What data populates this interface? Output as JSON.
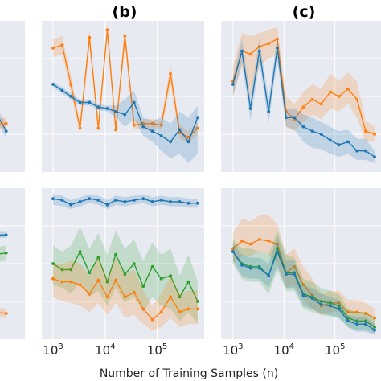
{
  "colors": {
    "blue": "#1f77b4",
    "orange": "#ff7f0e",
    "green": "#2ca02c",
    "panel_bg": "#e8eaf2",
    "grid": "#ffffff"
  },
  "xlabel": "Number of Training Samples (n)",
  "x_ticks": [
    {
      "base": "10",
      "exp": "3"
    },
    {
      "base": "10",
      "exp": "4"
    },
    {
      "base": "10",
      "exp": "5"
    }
  ],
  "chart_data": [
    {
      "type": "line",
      "panel": "(a)-top (partially visible)",
      "title": "",
      "x_scale": "log",
      "xlim": [
        700,
        800000
      ],
      "ylim": [
        0,
        1
      ],
      "series": [
        {
          "color": "blue",
          "x": [
            400000,
            600000
          ],
          "y": [
            0.55,
            0.27
          ],
          "band": [
            [
              0.52,
              0.58
            ],
            [
              0.22,
              0.32
            ]
          ]
        },
        {
          "color": "orange",
          "x": [
            400000,
            600000
          ],
          "y": [
            0.32,
            0.32
          ],
          "band": [
            [
              0.29,
              0.35
            ],
            [
              0.28,
              0.36
            ]
          ]
        }
      ]
    },
    {
      "type": "line",
      "panel": "(b)-top",
      "title": "(b)",
      "x_scale": "log",
      "xlim": [
        700,
        800000
      ],
      "ylim": [
        0,
        1
      ],
      "series": [
        {
          "color": "orange",
          "x": [
            1000,
            1500,
            2200,
            3300,
            5000,
            7400,
            11000,
            16000,
            24000,
            36000,
            54000,
            81000,
            120000,
            180000,
            270000,
            400000,
            600000
          ],
          "y": [
            0.82,
            0.84,
            0.58,
            0.29,
            0.89,
            0.29,
            0.94,
            0.28,
            0.9,
            0.31,
            0.32,
            0.32,
            0.31,
            0.65,
            0.26,
            0.23,
            0.29
          ],
          "band_low": [
            0.76,
            0.78,
            0.52,
            0.25,
            0.83,
            0.26,
            0.88,
            0.25,
            0.83,
            0.28,
            0.29,
            0.29,
            0.28,
            0.58,
            0.22,
            0.19,
            0.25
          ],
          "band_high": [
            0.88,
            0.9,
            0.64,
            0.33,
            0.95,
            0.33,
            0.98,
            0.31,
            0.96,
            0.35,
            0.35,
            0.35,
            0.34,
            0.72,
            0.31,
            0.27,
            0.33
          ]
        },
        {
          "color": "blue",
          "x": [
            1000,
            1500,
            2200,
            3300,
            5000,
            7400,
            11000,
            16000,
            24000,
            36000,
            54000,
            81000,
            120000,
            180000,
            270000,
            400000,
            600000
          ],
          "y": [
            0.58,
            0.54,
            0.5,
            0.46,
            0.46,
            0.43,
            0.42,
            0.4,
            0.38,
            0.46,
            0.3,
            0.27,
            0.24,
            0.2,
            0.28,
            0.2,
            0.36
          ],
          "band_low": [
            0.56,
            0.52,
            0.48,
            0.44,
            0.44,
            0.41,
            0.4,
            0.36,
            0.3,
            0.35,
            0.24,
            0.2,
            0.14,
            0.09,
            0.12,
            0.06,
            0.12
          ],
          "band_high": [
            0.6,
            0.56,
            0.52,
            0.48,
            0.48,
            0.45,
            0.44,
            0.44,
            0.48,
            0.54,
            0.36,
            0.34,
            0.36,
            0.32,
            0.4,
            0.36,
            0.44
          ]
        }
      ]
    },
    {
      "type": "line",
      "panel": "(c)-top",
      "title": "(c)",
      "x_scale": "log",
      "xlim": [
        700,
        800000
      ],
      "ylim": [
        0,
        1
      ],
      "series": [
        {
          "color": "orange",
          "x": [
            1000,
            1500,
            2200,
            3300,
            5000,
            7400,
            11000,
            16000,
            24000,
            36000,
            54000,
            81000,
            120000,
            180000,
            270000,
            400000,
            600000
          ],
          "y": [
            0.6,
            0.8,
            0.78,
            0.83,
            0.85,
            0.88,
            0.4,
            0.35,
            0.43,
            0.48,
            0.45,
            0.53,
            0.5,
            0.55,
            0.48,
            0.27,
            0.25
          ],
          "band_low": [
            0.5,
            0.7,
            0.5,
            0.7,
            0.75,
            0.78,
            0.3,
            0.27,
            0.33,
            0.38,
            0.35,
            0.42,
            0.4,
            0.45,
            0.36,
            0.2,
            0.2
          ],
          "band_high": [
            0.7,
            0.92,
            0.9,
            0.92,
            0.94,
            0.96,
            0.5,
            0.45,
            0.53,
            0.58,
            0.55,
            0.65,
            0.6,
            0.66,
            0.6,
            0.34,
            0.3
          ]
        },
        {
          "color": "blue",
          "x": [
            1000,
            1500,
            2200,
            3300,
            5000,
            7400,
            11000,
            16000,
            24000,
            36000,
            54000,
            81000,
            120000,
            180000,
            270000,
            400000,
            600000
          ],
          "y": [
            0.58,
            0.8,
            0.42,
            0.8,
            0.4,
            0.82,
            0.36,
            0.36,
            0.3,
            0.27,
            0.25,
            0.21,
            0.18,
            0.2,
            0.14,
            0.14,
            0.1
          ],
          "band_low": [
            0.5,
            0.72,
            0.34,
            0.72,
            0.32,
            0.74,
            0.3,
            0.28,
            0.2,
            0.16,
            0.15,
            0.12,
            0.1,
            0.12,
            0.08,
            0.08,
            0.06
          ],
          "band_high": [
            0.64,
            0.88,
            0.5,
            0.88,
            0.48,
            0.9,
            0.42,
            0.42,
            0.38,
            0.36,
            0.33,
            0.3,
            0.27,
            0.28,
            0.22,
            0.22,
            0.14
          ]
        }
      ]
    },
    {
      "type": "line",
      "panel": "(a)-bottom (partially visible)",
      "title": "",
      "x_scale": "log",
      "xlim": [
        700,
        800000
      ],
      "ylim": [
        0,
        1
      ],
      "series": [
        {
          "color": "blue",
          "x": [
            400000,
            600000
          ],
          "y": [
            0.69,
            0.69
          ],
          "band": [
            [
              0.67,
              0.71
            ],
            [
              0.67,
              0.71
            ]
          ]
        },
        {
          "color": "green",
          "x": [
            400000,
            600000
          ],
          "y": [
            0.55,
            0.57
          ],
          "band": [
            [
              0.5,
              0.6
            ],
            [
              0.52,
              0.62
            ]
          ]
        },
        {
          "color": "orange",
          "x": [
            400000,
            600000
          ],
          "y": [
            0.19,
            0.17
          ],
          "band": [
            [
              0.16,
              0.22
            ],
            [
              0.14,
              0.2
            ]
          ]
        }
      ]
    },
    {
      "type": "line",
      "panel": "(b)-bottom",
      "title": "",
      "x_scale": "log",
      "xlim": [
        700,
        800000
      ],
      "ylim": [
        0,
        1
      ],
      "series": [
        {
          "color": "blue",
          "x": [
            1000,
            1500,
            2200,
            3300,
            5000,
            7400,
            11000,
            16000,
            24000,
            36000,
            54000,
            81000,
            120000,
            180000,
            270000,
            400000,
            600000
          ],
          "y": [
            0.93,
            0.92,
            0.89,
            0.91,
            0.93,
            0.92,
            0.89,
            0.92,
            0.91,
            0.92,
            0.93,
            0.91,
            0.92,
            0.91,
            0.91,
            0.9,
            0.9
          ],
          "band_low": [
            0.89,
            0.88,
            0.86,
            0.88,
            0.9,
            0.89,
            0.86,
            0.89,
            0.88,
            0.89,
            0.9,
            0.88,
            0.89,
            0.88,
            0.88,
            0.87,
            0.87
          ],
          "band_high": [
            0.96,
            0.95,
            0.92,
            0.94,
            0.96,
            0.95,
            0.92,
            0.95,
            0.94,
            0.95,
            0.96,
            0.94,
            0.95,
            0.94,
            0.94,
            0.93,
            0.93
          ]
        },
        {
          "color": "green",
          "x": [
            1000,
            1500,
            2200,
            3300,
            5000,
            7400,
            11000,
            16000,
            24000,
            36000,
            54000,
            81000,
            120000,
            180000,
            270000,
            400000,
            600000
          ],
          "y": [
            0.5,
            0.46,
            0.46,
            0.58,
            0.44,
            0.54,
            0.38,
            0.56,
            0.43,
            0.5,
            0.35,
            0.48,
            0.4,
            0.42,
            0.28,
            0.38,
            0.25
          ],
          "band_low": [
            0.36,
            0.34,
            0.3,
            0.38,
            0.28,
            0.32,
            0.22,
            0.34,
            0.24,
            0.28,
            0.18,
            0.28,
            0.22,
            0.2,
            0.12,
            0.18,
            0.1
          ],
          "band_high": [
            0.62,
            0.58,
            0.62,
            0.74,
            0.6,
            0.7,
            0.56,
            0.72,
            0.6,
            0.66,
            0.52,
            0.64,
            0.56,
            0.6,
            0.42,
            0.56,
            0.38
          ]
        },
        {
          "color": "orange",
          "x": [
            1000,
            1500,
            2200,
            3300,
            5000,
            7400,
            11000,
            16000,
            24000,
            36000,
            54000,
            81000,
            120000,
            180000,
            270000,
            400000,
            600000
          ],
          "y": [
            0.4,
            0.38,
            0.38,
            0.36,
            0.3,
            0.39,
            0.28,
            0.39,
            0.28,
            0.31,
            0.2,
            0.13,
            0.18,
            0.28,
            0.18,
            0.2,
            0.2
          ],
          "band_low": [
            0.28,
            0.25,
            0.24,
            0.22,
            0.18,
            0.24,
            0.16,
            0.24,
            0.14,
            0.16,
            0.1,
            0.06,
            0.08,
            0.14,
            0.08,
            0.1,
            0.1
          ],
          "band_high": [
            0.5,
            0.5,
            0.52,
            0.5,
            0.42,
            0.54,
            0.4,
            0.54,
            0.42,
            0.46,
            0.32,
            0.22,
            0.3,
            0.42,
            0.3,
            0.32,
            0.32
          ]
        }
      ]
    },
    {
      "type": "line",
      "panel": "(c)-bottom",
      "title": "",
      "x_scale": "log",
      "xlim": [
        700,
        800000
      ],
      "ylim": [
        0,
        1
      ],
      "series": [
        {
          "color": "orange",
          "x": [
            1000,
            1500,
            2200,
            3300,
            5000,
            7400,
            11000,
            16000,
            24000,
            36000,
            54000,
            81000,
            120000,
            180000,
            270000,
            400000,
            600000
          ],
          "y": [
            0.6,
            0.65,
            0.63,
            0.66,
            0.65,
            0.63,
            0.44,
            0.48,
            0.36,
            0.29,
            0.22,
            0.24,
            0.24,
            0.18,
            0.18,
            0.17,
            0.14
          ],
          "band_low": [
            0.5,
            0.55,
            0.55,
            0.58,
            0.56,
            0.5,
            0.34,
            0.36,
            0.26,
            0.2,
            0.16,
            0.18,
            0.18,
            0.12,
            0.12,
            0.11,
            0.08
          ],
          "band_high": [
            0.7,
            0.8,
            0.78,
            0.82,
            0.82,
            0.76,
            0.56,
            0.6,
            0.48,
            0.4,
            0.3,
            0.32,
            0.32,
            0.26,
            0.26,
            0.24,
            0.2
          ]
        },
        {
          "color": "green",
          "x": [
            1000,
            1500,
            2200,
            3300,
            5000,
            7400,
            11000,
            16000,
            24000,
            36000,
            54000,
            81000,
            120000,
            180000,
            270000,
            400000,
            600000
          ],
          "y": [
            0.58,
            0.5,
            0.48,
            0.48,
            0.42,
            0.6,
            0.44,
            0.44,
            0.3,
            0.28,
            0.25,
            0.24,
            0.22,
            0.14,
            0.12,
            0.12,
            0.08
          ],
          "band_low": [
            0.5,
            0.4,
            0.38,
            0.38,
            0.3,
            0.46,
            0.32,
            0.32,
            0.2,
            0.18,
            0.16,
            0.15,
            0.14,
            0.08,
            0.06,
            0.06,
            0.04
          ],
          "band_high": [
            0.66,
            0.6,
            0.6,
            0.58,
            0.56,
            0.72,
            0.56,
            0.54,
            0.4,
            0.38,
            0.34,
            0.32,
            0.3,
            0.2,
            0.18,
            0.18,
            0.14
          ]
        },
        {
          "color": "blue",
          "x": [
            1000,
            1500,
            2200,
            3300,
            5000,
            7400,
            11000,
            16000,
            24000,
            36000,
            54000,
            81000,
            120000,
            180000,
            270000,
            400000,
            600000
          ],
          "y": [
            0.58,
            0.49,
            0.47,
            0.47,
            0.42,
            0.58,
            0.43,
            0.43,
            0.29,
            0.27,
            0.23,
            0.22,
            0.2,
            0.12,
            0.1,
            0.1,
            0.06
          ],
          "band_low": [
            0.52,
            0.42,
            0.4,
            0.4,
            0.34,
            0.48,
            0.34,
            0.34,
            0.22,
            0.2,
            0.17,
            0.16,
            0.14,
            0.08,
            0.05,
            0.05,
            0.03
          ],
          "band_high": [
            0.64,
            0.56,
            0.54,
            0.54,
            0.5,
            0.68,
            0.52,
            0.52,
            0.36,
            0.34,
            0.3,
            0.28,
            0.26,
            0.16,
            0.15,
            0.15,
            0.1
          ]
        }
      ]
    }
  ]
}
